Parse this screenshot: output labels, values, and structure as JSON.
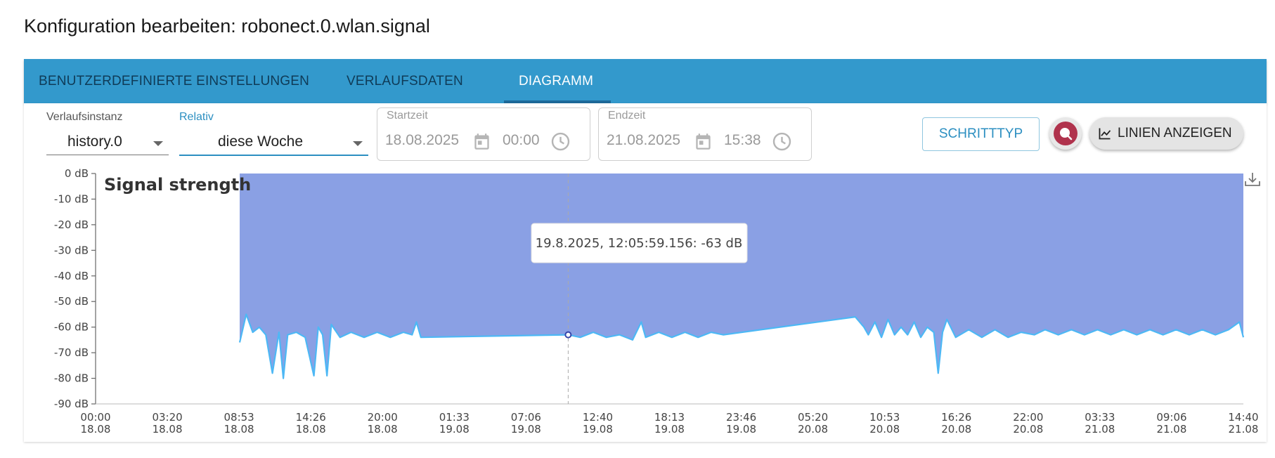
{
  "page": {
    "title": "Konfiguration bearbeiten: robonect.0.wlan.signal"
  },
  "tabs": [
    {
      "label": "BENUTZERDEFINIERTE EINSTELLUNGEN"
    },
    {
      "label": "VERLAUFSDATEN"
    },
    {
      "label": "DIAGRAMM",
      "active": true
    }
  ],
  "controls": {
    "instance": {
      "label": "Verlaufsinstanz",
      "value": "history.0"
    },
    "relative": {
      "label": "Relativ",
      "value": "diese Woche",
      "accent": "#2c8fc1"
    },
    "start": {
      "label": "Startzeit",
      "date": "18.08.2025",
      "time": "00:00"
    },
    "end": {
      "label": "Endzeit",
      "date": "21.08.2025",
      "time": "15:38"
    },
    "step_button": "SCHRITTTYP",
    "lines_button": "LINIEN ANZEIGEN",
    "accent_color": "#3399cc",
    "round_button_icon": "chat-bubble-icon",
    "round_button_color": "#b0334d"
  },
  "chart_data": {
    "type": "area",
    "title": "Signal strength",
    "ylim": [
      -90,
      0
    ],
    "y_ticks": [
      "0 dB",
      "-10 dB",
      "-20 dB",
      "-30 dB",
      "-40 dB",
      "-50 dB",
      "-60 dB",
      "-70 dB",
      "-80 dB",
      "-90 dB"
    ],
    "x_ticks": [
      {
        "time": "00:00",
        "date": "18.08"
      },
      {
        "time": "03:20",
        "date": "18.08"
      },
      {
        "time": "08:53",
        "date": "18.08"
      },
      {
        "time": "14:26",
        "date": "18.08"
      },
      {
        "time": "20:00",
        "date": "18.08"
      },
      {
        "time": "01:33",
        "date": "19.08"
      },
      {
        "time": "07:06",
        "date": "19.08"
      },
      {
        "time": "12:40",
        "date": "19.08"
      },
      {
        "time": "18:13",
        "date": "19.08"
      },
      {
        "time": "23:46",
        "date": "19.08"
      },
      {
        "time": "05:20",
        "date": "20.08"
      },
      {
        "time": "10:53",
        "date": "20.08"
      },
      {
        "time": "16:26",
        "date": "20.08"
      },
      {
        "time": "22:00",
        "date": "20.08"
      },
      {
        "time": "03:33",
        "date": "21.08"
      },
      {
        "time": "09:06",
        "date": "21.08"
      },
      {
        "time": "14:40",
        "date": "21.08"
      }
    ],
    "series": [
      {
        "fill_color": "#8aa0e4",
        "line_color": "#4db8f5",
        "points": [
          [
            "2025-08-18 11:00",
            -66
          ],
          [
            "2025-08-18 11:30",
            -55
          ],
          [
            "2025-08-18 12:00",
            -62
          ],
          [
            "2025-08-18 12:30",
            -60
          ],
          [
            "2025-08-18 13:00",
            -63
          ],
          [
            "2025-08-18 13:30",
            -78
          ],
          [
            "2025-08-18 14:00",
            -62
          ],
          [
            "2025-08-18 14:20",
            -80
          ],
          [
            "2025-08-18 14:40",
            -63
          ],
          [
            "2025-08-18 15:20",
            -62
          ],
          [
            "2025-08-18 16:00",
            -64
          ],
          [
            "2025-08-18 16:40",
            -79
          ],
          [
            "2025-08-18 17:00",
            -60
          ],
          [
            "2025-08-18 17:20",
            -63
          ],
          [
            "2025-08-18 17:40",
            -79
          ],
          [
            "2025-08-18 18:00",
            -59
          ],
          [
            "2025-08-18 18:40",
            -64
          ],
          [
            "2025-08-18 19:30",
            -62
          ],
          [
            "2025-08-18 20:30",
            -64
          ],
          [
            "2025-08-18 21:30",
            -62
          ],
          [
            "2025-08-18 22:30",
            -64
          ],
          [
            "2025-08-18 23:30",
            -62
          ],
          [
            "2025-08-19 00:10",
            -63
          ],
          [
            "2025-08-19 00:30",
            -58
          ],
          [
            "2025-08-19 00:50",
            -64
          ],
          [
            "2025-08-19 12:05",
            -63
          ],
          [
            "2025-08-19 13:00",
            -64
          ],
          [
            "2025-08-19 14:00",
            -62
          ],
          [
            "2025-08-19 15:00",
            -64
          ],
          [
            "2025-08-19 16:00",
            -63
          ],
          [
            "2025-08-19 17:00",
            -65
          ],
          [
            "2025-08-19 17:40",
            -58
          ],
          [
            "2025-08-19 18:00",
            -64
          ],
          [
            "2025-08-19 19:00",
            -62
          ],
          [
            "2025-08-19 20:00",
            -64
          ],
          [
            "2025-08-19 21:00",
            -62
          ],
          [
            "2025-08-19 22:00",
            -64
          ],
          [
            "2025-08-19 23:00",
            -62
          ],
          [
            "2025-08-19 23:55",
            -63
          ],
          [
            "2025-08-20 10:00",
            -56
          ],
          [
            "2025-08-20 10:40",
            -60
          ],
          [
            "2025-08-20 11:00",
            -63
          ],
          [
            "2025-08-20 11:30",
            -58
          ],
          [
            "2025-08-20 12:00",
            -64
          ],
          [
            "2025-08-20 12:30",
            -57
          ],
          [
            "2025-08-20 13:00",
            -63
          ],
          [
            "2025-08-20 13:30",
            -60
          ],
          [
            "2025-08-20 14:00",
            -63
          ],
          [
            "2025-08-20 14:30",
            -58
          ],
          [
            "2025-08-20 15:00",
            -64
          ],
          [
            "2025-08-20 15:30",
            -60
          ],
          [
            "2025-08-20 16:00",
            -62
          ],
          [
            "2025-08-20 16:20",
            -78
          ],
          [
            "2025-08-20 16:40",
            -62
          ],
          [
            "2025-08-20 17:00",
            -57
          ],
          [
            "2025-08-20 17:40",
            -64
          ],
          [
            "2025-08-20 18:40",
            -61
          ],
          [
            "2025-08-20 19:40",
            -64
          ],
          [
            "2025-08-20 20:40",
            -61
          ],
          [
            "2025-08-20 21:40",
            -64
          ],
          [
            "2025-08-20 22:40",
            -62
          ],
          [
            "2025-08-20 23:40",
            -63
          ],
          [
            "2025-08-21 00:30",
            -61
          ],
          [
            "2025-08-21 01:30",
            -63
          ],
          [
            "2025-08-21 02:30",
            -61
          ],
          [
            "2025-08-21 03:30",
            -63
          ],
          [
            "2025-08-21 04:30",
            -61
          ],
          [
            "2025-08-21 05:30",
            -63
          ],
          [
            "2025-08-21 06:30",
            -61
          ],
          [
            "2025-08-21 07:30",
            -63
          ],
          [
            "2025-08-21 08:30",
            -61
          ],
          [
            "2025-08-21 09:30",
            -63
          ],
          [
            "2025-08-21 10:30",
            -61
          ],
          [
            "2025-08-21 11:30",
            -63
          ],
          [
            "2025-08-21 12:30",
            -61
          ],
          [
            "2025-08-21 13:30",
            -63
          ],
          [
            "2025-08-21 14:30",
            -61
          ],
          [
            "2025-08-21 15:20",
            -58
          ],
          [
            "2025-08-21 15:38",
            -64
          ]
        ]
      }
    ],
    "tooltip": {
      "text": "19.8.2025, 12:05:59.156: -63 dB",
      "x": "2025-08-19 12:05",
      "y": -63
    },
    "download_icon": "download-icon"
  }
}
